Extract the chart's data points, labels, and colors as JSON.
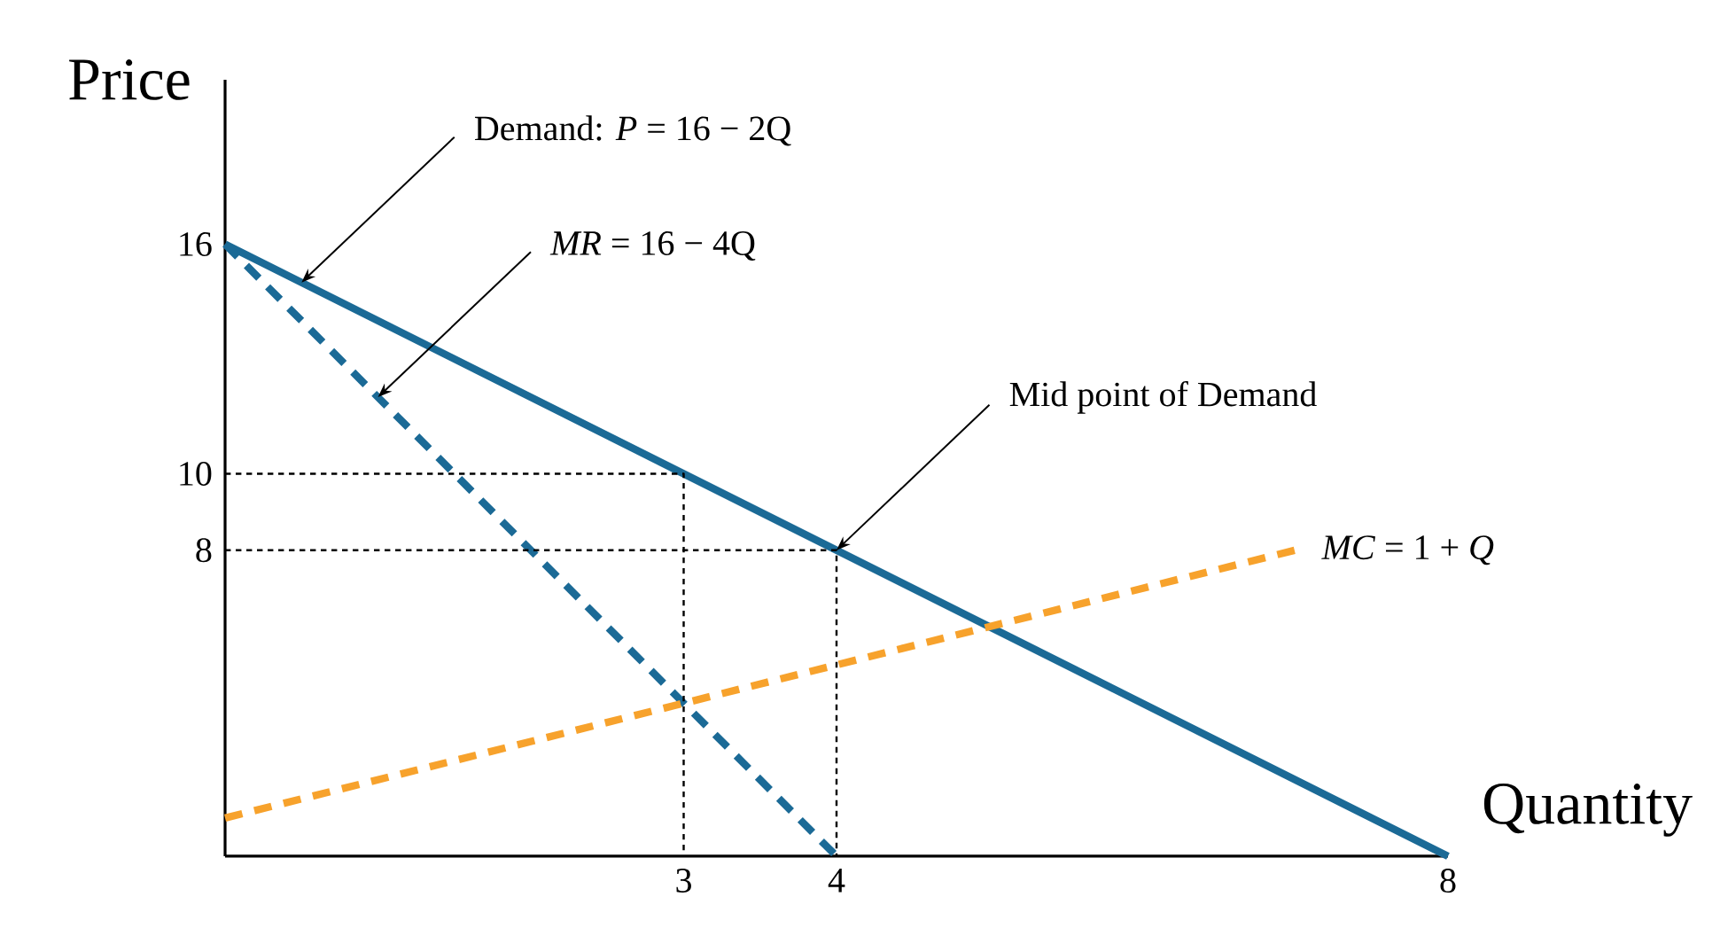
{
  "chart_data": {
    "type": "line",
    "xlabel": "Quantity",
    "ylabel": "Price",
    "xlim": [
      0,
      8
    ],
    "ylim": [
      0,
      20.3
    ],
    "xticks": [
      3,
      4,
      8
    ],
    "yticks": [
      8,
      10,
      16
    ],
    "grid": false,
    "legend": false,
    "marker": "none",
    "series": [
      {
        "color": "#1b6a96",
        "line_style": "solid",
        "x": [
          0,
          8
        ],
        "values": [
          16,
          0
        ]
      },
      {
        "color": "#1b6a96",
        "line_style": "dashed",
        "x": [
          0,
          4
        ],
        "values": [
          16,
          0
        ]
      },
      {
        "name": "*MC* = 1 + *Q*",
        "color": "#f7a22c",
        "line_style": "dashed",
        "x": [
          0,
          7
        ],
        "values": [
          1,
          8
        ]
      },
      {
        "color": "#000000",
        "line_style": "dotted",
        "x": [
          0,
          3,
          3
        ],
        "values": [
          10,
          10,
          0
        ]
      },
      {
        "color": "#000000",
        "line_style": "dotted",
        "x": [
          0,
          4,
          4
        ],
        "values": [
          8,
          8,
          0
        ]
      }
    ],
    "annotations": [
      {
        "text": "Demand: *P* = 16 − 2Q",
        "x": 0.5,
        "y": 15
      },
      {
        "text": "*MR* = 16 − 4Q",
        "x": 1,
        "y": 12
      },
      {
        "text": "Mid point of Demand",
        "x": 4,
        "y": 8
      }
    ]
  }
}
